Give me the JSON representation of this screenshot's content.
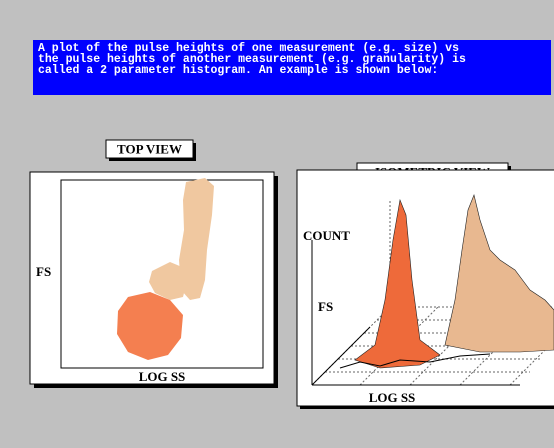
{
  "header": {
    "lines": [
      "A plot of the pulse heights of one measurement (e.g. size) vs",
      "the pulse heights of another measurement (e.g. granularity) is",
      "called a 2 parameter histogram. An example is shown below:"
    ]
  },
  "top_view": {
    "title": "TOP VIEW",
    "y_label": "FS",
    "x_label": "LOG SS"
  },
  "isometric_view": {
    "title": "ISOMETRIC VIEW",
    "z_label": "COUNT",
    "y_label": "FS",
    "x_label": "LOG SS"
  }
}
